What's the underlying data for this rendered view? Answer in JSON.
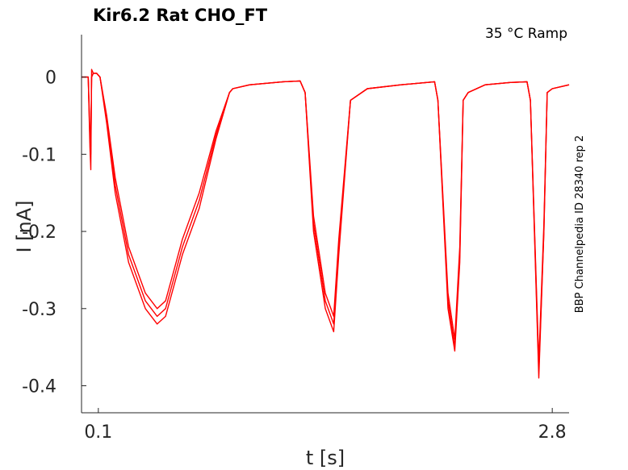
{
  "chart_data": {
    "type": "line",
    "title": "Kir6.2  Rat  CHO_FT",
    "annotation": "35 °C  Ramp",
    "side_text": "BBP Channelpedia ID 28340 rep 2",
    "xlabel": "t [s]",
    "ylabel": "I [nA]",
    "xlim": [
      0,
      2.9
    ],
    "ylim": [
      -0.435,
      0.055
    ],
    "x_ticks": [
      0.1,
      2.8
    ],
    "x_tick_labels": [
      "0.1",
      "2.8"
    ],
    "y_ticks": [
      0,
      -0.1,
      -0.2,
      -0.3,
      -0.4
    ],
    "y_tick_labels": [
      "0",
      "-0.1",
      "-0.2",
      "-0.3",
      "-0.4"
    ],
    "grid": false,
    "series_color": "#ff0000",
    "series": [
      {
        "x": [
          0.0,
          0.04,
          0.05,
          0.055,
          0.06,
          0.07,
          0.09,
          0.11,
          0.15,
          0.2,
          0.28,
          0.38,
          0.45,
          0.5,
          0.55,
          0.6,
          0.7,
          0.8,
          0.88,
          0.9,
          1.0,
          1.2,
          1.3,
          1.33,
          1.38,
          1.45,
          1.5,
          1.53,
          1.6,
          1.7,
          1.9,
          2.1,
          2.12,
          2.18,
          2.22,
          2.25,
          2.27,
          2.3,
          2.4,
          2.55,
          2.65,
          2.67,
          2.72,
          2.75,
          2.77,
          2.8,
          2.9
        ],
        "y": [
          0.0,
          0.0,
          -0.09,
          -0.12,
          0.01,
          0.005,
          0.005,
          0.0,
          -0.06,
          -0.15,
          -0.24,
          -0.3,
          -0.32,
          -0.31,
          -0.27,
          -0.23,
          -0.17,
          -0.08,
          -0.02,
          -0.015,
          -0.01,
          -0.006,
          -0.005,
          -0.02,
          -0.2,
          -0.3,
          -0.33,
          -0.23,
          -0.03,
          -0.015,
          -0.01,
          -0.006,
          -0.03,
          -0.3,
          -0.355,
          -0.24,
          -0.03,
          -0.02,
          -0.01,
          -0.007,
          -0.006,
          -0.03,
          -0.39,
          -0.2,
          -0.02,
          -0.015,
          -0.01
        ]
      },
      {
        "x": [
          0.0,
          0.04,
          0.05,
          0.055,
          0.06,
          0.07,
          0.09,
          0.11,
          0.15,
          0.2,
          0.28,
          0.38,
          0.45,
          0.5,
          0.55,
          0.6,
          0.7,
          0.8,
          0.88,
          0.9,
          1.0,
          1.2,
          1.3,
          1.33,
          1.38,
          1.45,
          1.5,
          1.53,
          1.6,
          1.7,
          1.9,
          2.1,
          2.12,
          2.18,
          2.22,
          2.25,
          2.27,
          2.3,
          2.4,
          2.55,
          2.65,
          2.67,
          2.72,
          2.75,
          2.77,
          2.8,
          2.9
        ],
        "y": [
          0.0,
          0.0,
          -0.08,
          -0.1,
          0.0,
          0.005,
          0.005,
          0.0,
          -0.05,
          -0.13,
          -0.22,
          -0.28,
          -0.3,
          -0.29,
          -0.25,
          -0.21,
          -0.15,
          -0.07,
          -0.02,
          -0.015,
          -0.01,
          -0.006,
          -0.005,
          -0.02,
          -0.18,
          -0.28,
          -0.31,
          -0.21,
          -0.03,
          -0.015,
          -0.01,
          -0.006,
          -0.03,
          -0.28,
          -0.34,
          -0.22,
          -0.03,
          -0.02,
          -0.01,
          -0.007,
          -0.006,
          -0.03,
          -0.37,
          -0.19,
          -0.02,
          -0.015,
          -0.01
        ]
      },
      {
        "x": [
          0.0,
          0.04,
          0.05,
          0.055,
          0.06,
          0.07,
          0.09,
          0.11,
          0.15,
          0.2,
          0.28,
          0.38,
          0.45,
          0.5,
          0.55,
          0.6,
          0.7,
          0.8,
          0.88,
          0.9,
          1.0,
          1.2,
          1.3,
          1.33,
          1.38,
          1.45,
          1.5,
          1.53,
          1.6,
          1.7,
          1.9,
          2.1,
          2.12,
          2.18,
          2.22,
          2.25,
          2.27,
          2.3,
          2.4,
          2.55,
          2.65,
          2.67,
          2.72,
          2.75,
          2.77,
          2.8,
          2.9
        ],
        "y": [
          0.0,
          0.0,
          -0.07,
          -0.09,
          0.0,
          0.005,
          0.005,
          0.0,
          -0.055,
          -0.14,
          -0.23,
          -0.29,
          -0.31,
          -0.3,
          -0.26,
          -0.22,
          -0.16,
          -0.075,
          -0.02,
          -0.015,
          -0.01,
          -0.006,
          -0.005,
          -0.02,
          -0.19,
          -0.29,
          -0.32,
          -0.22,
          -0.03,
          -0.015,
          -0.01,
          -0.006,
          -0.03,
          -0.29,
          -0.35,
          -0.23,
          -0.03,
          -0.02,
          -0.01,
          -0.007,
          -0.006,
          -0.03,
          -0.38,
          -0.2,
          -0.02,
          -0.015,
          -0.01
        ]
      }
    ]
  }
}
